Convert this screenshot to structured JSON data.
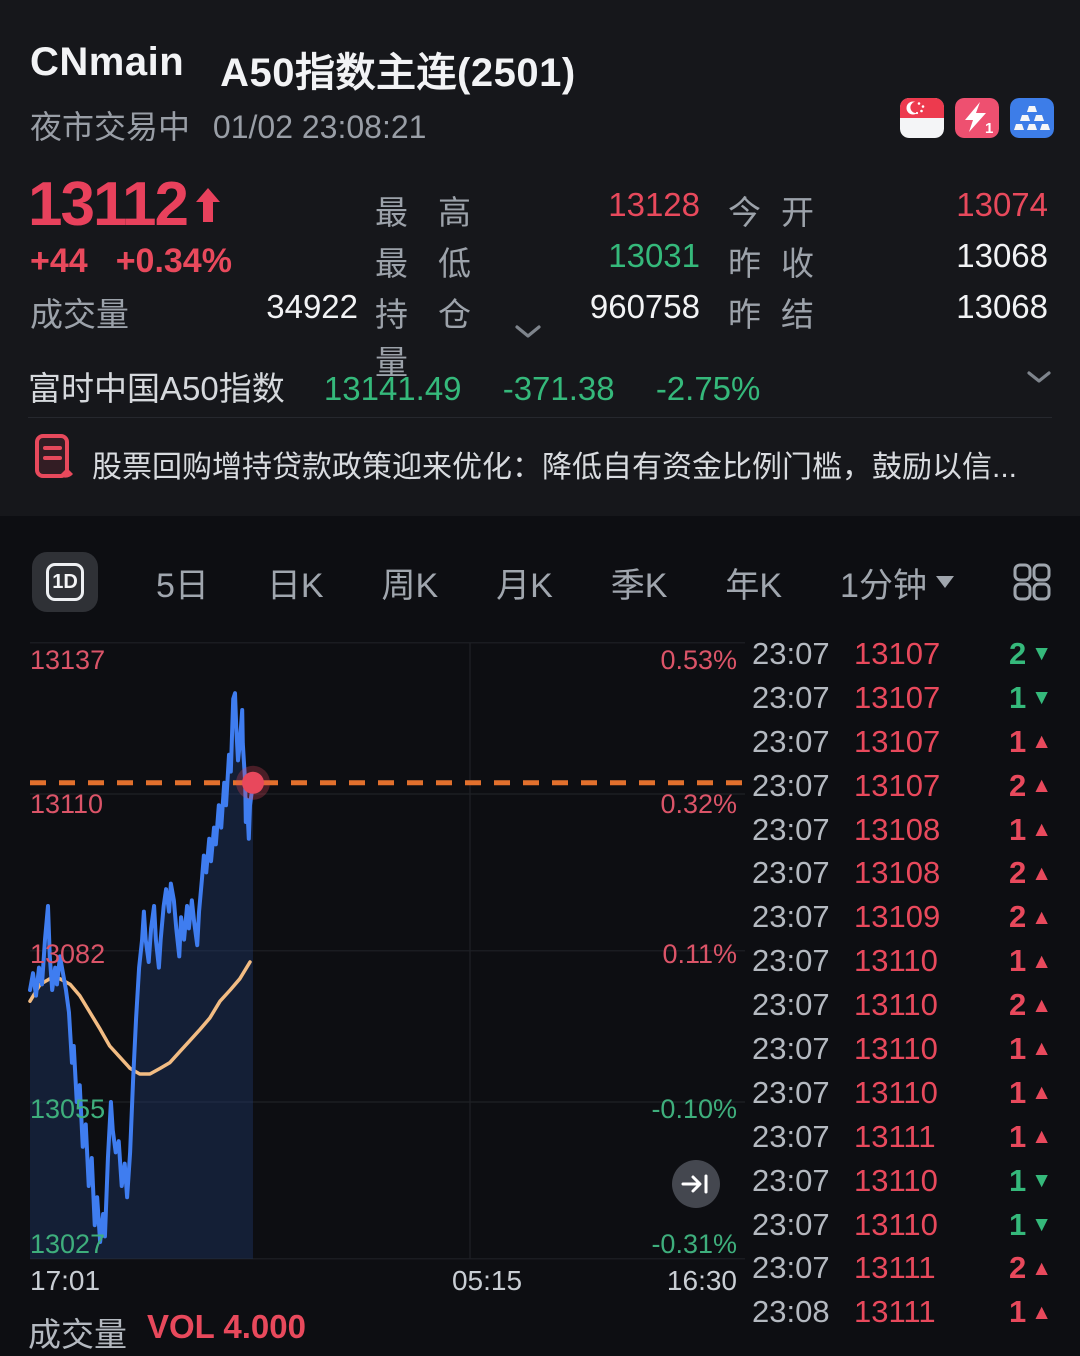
{
  "header": {
    "symbol": "CNmain",
    "name": "A50指数主连(2501)",
    "session_status": "夜市交易中",
    "datetime": "01/02 23:08:21"
  },
  "quote": {
    "last": "13112",
    "change": "+44",
    "change_pct": "+0.34%",
    "volume_label": "成交量",
    "volume": "34922",
    "mid": [
      {
        "label": "最高",
        "value": "13128",
        "tone": "red"
      },
      {
        "label": "最低",
        "value": "13031",
        "tone": "green"
      },
      {
        "label": "持仓量",
        "value": "960758",
        "tone": "white"
      }
    ],
    "right": [
      {
        "label": "今开",
        "value": "13074",
        "tone": "red"
      },
      {
        "label": "昨收",
        "value": "13068",
        "tone": "white"
      },
      {
        "label": "昨结",
        "value": "13068",
        "tone": "white"
      }
    ]
  },
  "index_bar": {
    "name": "富时中国A50指数",
    "value": "13141.49",
    "change": "-371.38",
    "change_pct": "-2.75%"
  },
  "news": {
    "headline": "股票回购增持贷款政策迎来优化：降低自有资金比例门槛，鼓励以信..."
  },
  "toolbar": {
    "active": "1D",
    "tabs": [
      "5日",
      "日K",
      "周K",
      "月K",
      "季K",
      "年K"
    ],
    "period": "1分钟"
  },
  "chart_data": {
    "type": "line",
    "title": "A50 index futures 1-day intraday line",
    "ylim": [
      13027,
      13137
    ],
    "prev_settle": 13068,
    "last_price": 13112,
    "grid": "on",
    "y_gridlines": [
      {
        "price": "13137",
        "pct": "0.53%",
        "tone": "red"
      },
      {
        "price": "13110",
        "pct": "0.32%",
        "tone": "red"
      },
      {
        "price": "13082",
        "pct": "0.11%",
        "tone": "red"
      },
      {
        "price": "13055",
        "pct": "-0.10%",
        "tone": "green"
      },
      {
        "price": "13027",
        "pct": "-0.31%",
        "tone": "green"
      }
    ],
    "x_ticks": [
      "17:01",
      "05:15",
      "16:30"
    ],
    "session_break_minute": 734,
    "total_minutes": 1409,
    "series": [
      {
        "name": "price",
        "color": "#3F7DF0",
        "points": [
          [
            0,
            13075
          ],
          [
            5,
            13078
          ],
          [
            10,
            13074
          ],
          [
            15,
            13079
          ],
          [
            20,
            13076
          ],
          [
            25,
            13084
          ],
          [
            30,
            13090
          ],
          [
            33,
            13081
          ],
          [
            37,
            13075
          ],
          [
            42,
            13079
          ],
          [
            45,
            13076
          ],
          [
            50,
            13081
          ],
          [
            55,
            13078
          ],
          [
            60,
            13075
          ],
          [
            65,
            13071
          ],
          [
            70,
            13062
          ],
          [
            73,
            13065
          ],
          [
            78,
            13055
          ],
          [
            83,
            13058
          ],
          [
            88,
            13047
          ],
          [
            93,
            13051
          ],
          [
            98,
            13040
          ],
          [
            103,
            13045
          ],
          [
            108,
            13033
          ],
          [
            112,
            13038
          ],
          [
            117,
            13030
          ],
          [
            122,
            13035
          ],
          [
            125,
            13031
          ],
          [
            130,
            13045
          ],
          [
            135,
            13055
          ],
          [
            138,
            13050
          ],
          [
            143,
            13046
          ],
          [
            148,
            13048
          ],
          [
            153,
            13040
          ],
          [
            158,
            13044
          ],
          [
            162,
            13038
          ],
          [
            167,
            13046
          ],
          [
            172,
            13059
          ],
          [
            177,
            13070
          ],
          [
            182,
            13079
          ],
          [
            187,
            13084
          ],
          [
            190,
            13089
          ],
          [
            193,
            13084
          ],
          [
            198,
            13080
          ],
          [
            202,
            13086
          ],
          [
            207,
            13090
          ],
          [
            210,
            13084
          ],
          [
            215,
            13079
          ],
          [
            218,
            13084
          ],
          [
            223,
            13090
          ],
          [
            227,
            13093
          ],
          [
            232,
            13089
          ],
          [
            235,
            13094
          ],
          [
            240,
            13091
          ],
          [
            244,
            13086
          ],
          [
            249,
            13081
          ],
          [
            252,
            13088
          ],
          [
            257,
            13084
          ],
          [
            262,
            13090
          ],
          [
            265,
            13086
          ],
          [
            270,
            13091
          ],
          [
            274,
            13087
          ],
          [
            279,
            13083
          ],
          [
            282,
            13089
          ],
          [
            287,
            13095
          ],
          [
            290,
            13099
          ],
          [
            294,
            13096
          ],
          [
            299,
            13102
          ],
          [
            302,
            13098
          ],
          [
            307,
            13104
          ],
          [
            310,
            13101
          ],
          [
            315,
            13108
          ],
          [
            319,
            13104
          ],
          [
            324,
            13112
          ],
          [
            327,
            13108
          ],
          [
            332,
            13117
          ],
          [
            335,
            13114
          ],
          [
            339,
            13127
          ],
          [
            342,
            13128
          ],
          [
            344,
            13122
          ],
          [
            347,
            13116
          ],
          [
            350,
            13119
          ],
          [
            354,
            13125
          ],
          [
            355,
            13119
          ],
          [
            359,
            13112
          ],
          [
            360,
            13105
          ],
          [
            362,
            13109
          ],
          [
            365,
            13102
          ],
          [
            367,
            13108
          ],
          [
            372,
            13112
          ]
        ]
      },
      {
        "name": "average",
        "color": "#F2BC83",
        "points": [
          [
            0,
            13073
          ],
          [
            17,
            13076
          ],
          [
            33,
            13077
          ],
          [
            50,
            13077
          ],
          [
            67,
            13076
          ],
          [
            83,
            13074
          ],
          [
            100,
            13071
          ],
          [
            117,
            13068
          ],
          [
            133,
            13065
          ],
          [
            150,
            13063
          ],
          [
            167,
            13061
          ],
          [
            183,
            13060
          ],
          [
            200,
            13060
          ],
          [
            217,
            13061
          ],
          [
            233,
            13062
          ],
          [
            250,
            13064
          ],
          [
            267,
            13066
          ],
          [
            284,
            13068
          ],
          [
            300,
            13070
          ],
          [
            317,
            13073
          ],
          [
            334,
            13075
          ],
          [
            350,
            13077
          ],
          [
            367,
            13080
          ]
        ]
      }
    ],
    "fill_color": "rgba(33,64,122,0.35)",
    "last_line_color": "#E2702D",
    "dot_color": "#E8485C"
  },
  "tape": [
    {
      "time": "23:07",
      "price": "13107",
      "qty": "2",
      "dir": "down"
    },
    {
      "time": "23:07",
      "price": "13107",
      "qty": "1",
      "dir": "down"
    },
    {
      "time": "23:07",
      "price": "13107",
      "qty": "1",
      "dir": "up"
    },
    {
      "time": "23:07",
      "price": "13107",
      "qty": "2",
      "dir": "up"
    },
    {
      "time": "23:07",
      "price": "13108",
      "qty": "1",
      "dir": "up"
    },
    {
      "time": "23:07",
      "price": "13108",
      "qty": "2",
      "dir": "up"
    },
    {
      "time": "23:07",
      "price": "13109",
      "qty": "2",
      "dir": "up"
    },
    {
      "time": "23:07",
      "price": "13110",
      "qty": "1",
      "dir": "up"
    },
    {
      "time": "23:07",
      "price": "13110",
      "qty": "2",
      "dir": "up"
    },
    {
      "time": "23:07",
      "price": "13110",
      "qty": "1",
      "dir": "up"
    },
    {
      "time": "23:07",
      "price": "13110",
      "qty": "1",
      "dir": "up"
    },
    {
      "time": "23:07",
      "price": "13111",
      "qty": "1",
      "dir": "up"
    },
    {
      "time": "23:07",
      "price": "13110",
      "qty": "1",
      "dir": "down"
    },
    {
      "time": "23:07",
      "price": "13110",
      "qty": "1",
      "dir": "down"
    },
    {
      "time": "23:07",
      "price": "13111",
      "qty": "2",
      "dir": "up"
    },
    {
      "time": "23:08",
      "price": "13111",
      "qty": "1",
      "dir": "up"
    }
  ],
  "volume_pane": {
    "label": "成交量",
    "value": "VOL 4.000"
  }
}
